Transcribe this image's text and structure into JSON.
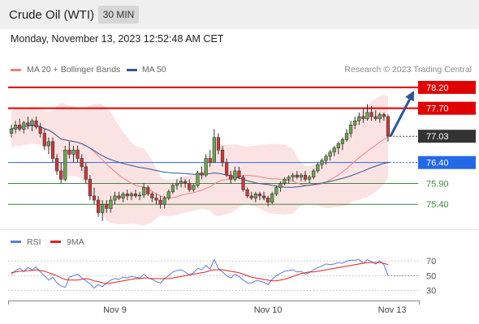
{
  "header": {
    "title": "Crude Oil (WTI)",
    "timeframe": "30 MIN"
  },
  "datetime": "Monday, November 13, 2023 12:52:48 AM CET",
  "legend": {
    "main": [
      {
        "label": "MA 20 + Bollinger Bands",
        "color": "#f08080"
      },
      {
        "label": "MA 50",
        "color": "#2f5597"
      }
    ],
    "rsi": [
      {
        "label": "RSI",
        "color": "#5b7fd6"
      },
      {
        "label": "9MA",
        "color": "#e02020"
      }
    ]
  },
  "copyright": "Research © 2023 Trading Central",
  "chart_data": [
    {
      "type": "candlestick",
      "ylim": [
        74.9,
        78.45
      ],
      "levels": [
        {
          "value": 78.2,
          "label": "78.20",
          "kind": "resistance",
          "color": "#e00000"
        },
        {
          "value": 77.7,
          "label": "77.70",
          "kind": "resistance",
          "color": "#e00000"
        },
        {
          "value": 77.03,
          "label": "77.03",
          "kind": "last",
          "color": "#222222"
        },
        {
          "value": 76.4,
          "label": "76.40",
          "kind": "pivot",
          "color": "#2468e8"
        },
        {
          "value": 75.9,
          "label": "75.90",
          "kind": "support",
          "color": "#3a8a3a"
        },
        {
          "value": 75.4,
          "label": "75.40",
          "kind": "support",
          "color": "#3a8a3a"
        }
      ],
      "x_ticks": [
        {
          "label": "Nov 9",
          "index": 25
        },
        {
          "label": "Nov 10",
          "index": 62
        },
        {
          "label": "Nov 13",
          "index": 92
        }
      ],
      "candles": [
        [
          77.1,
          77.3,
          77.0,
          77.2
        ],
        [
          77.2,
          77.4,
          77.1,
          77.3
        ],
        [
          77.3,
          77.45,
          77.15,
          77.2
        ],
        [
          77.2,
          77.4,
          77.1,
          77.35
        ],
        [
          77.35,
          77.5,
          77.2,
          77.3
        ],
        [
          77.3,
          77.45,
          77.15,
          77.4
        ],
        [
          77.4,
          77.5,
          77.2,
          77.25
        ],
        [
          77.25,
          77.35,
          77.0,
          77.1
        ],
        [
          77.1,
          77.2,
          76.7,
          76.8
        ],
        [
          76.8,
          77.0,
          76.6,
          76.9
        ],
        [
          76.9,
          77.0,
          76.4,
          76.5
        ],
        [
          76.5,
          76.6,
          76.1,
          76.2
        ],
        [
          76.2,
          76.4,
          75.9,
          76.0
        ],
        [
          76.0,
          76.8,
          75.95,
          76.7
        ],
        [
          76.7,
          76.9,
          76.5,
          76.6
        ],
        [
          76.6,
          76.8,
          76.4,
          76.7
        ],
        [
          76.7,
          76.8,
          76.4,
          76.5
        ],
        [
          76.5,
          76.6,
          76.2,
          76.3
        ],
        [
          76.3,
          76.4,
          75.9,
          76.0
        ],
        [
          76.0,
          76.1,
          75.5,
          75.6
        ],
        [
          75.6,
          75.8,
          75.4,
          75.5
        ],
        [
          75.5,
          75.6,
          75.1,
          75.2
        ],
        [
          75.2,
          75.5,
          75.0,
          75.4
        ],
        [
          75.4,
          75.5,
          75.2,
          75.3
        ],
        [
          75.3,
          75.6,
          75.2,
          75.5
        ],
        [
          75.5,
          75.7,
          75.4,
          75.6
        ],
        [
          75.6,
          75.7,
          75.5,
          75.55
        ],
        [
          75.55,
          75.7,
          75.45,
          75.65
        ],
        [
          75.65,
          75.75,
          75.5,
          75.6
        ],
        [
          75.6,
          75.7,
          75.5,
          75.65
        ],
        [
          75.65,
          75.75,
          75.55,
          75.6
        ],
        [
          75.6,
          75.7,
          75.5,
          75.62
        ],
        [
          75.62,
          75.9,
          75.55,
          75.8
        ],
        [
          75.8,
          75.85,
          75.6,
          75.65
        ],
        [
          75.65,
          75.7,
          75.45,
          75.55
        ],
        [
          75.55,
          75.65,
          75.4,
          75.5
        ],
        [
          75.5,
          75.6,
          75.3,
          75.4
        ],
        [
          75.4,
          75.6,
          75.3,
          75.55
        ],
        [
          75.55,
          75.75,
          75.5,
          75.7
        ],
        [
          75.7,
          75.9,
          75.65,
          75.85
        ],
        [
          75.85,
          76.0,
          75.75,
          75.9
        ],
        [
          75.9,
          76.05,
          75.8,
          75.95
        ],
        [
          75.95,
          76.0,
          75.8,
          75.9
        ],
        [
          75.9,
          76.0,
          75.7,
          75.75
        ],
        [
          75.75,
          75.9,
          75.7,
          75.85
        ],
        [
          75.85,
          76.2,
          75.8,
          76.15
        ],
        [
          76.15,
          76.3,
          76.0,
          76.1
        ],
        [
          76.1,
          76.6,
          76.05,
          76.5
        ],
        [
          76.5,
          76.7,
          76.3,
          76.4
        ],
        [
          76.4,
          77.2,
          76.4,
          77.0
        ],
        [
          77.0,
          77.1,
          76.6,
          76.7
        ],
        [
          76.7,
          76.8,
          76.3,
          76.4
        ],
        [
          76.4,
          76.5,
          76.05,
          76.1
        ],
        [
          76.1,
          76.2,
          75.9,
          76.0
        ],
        [
          76.0,
          76.3,
          75.95,
          76.2
        ],
        [
          76.2,
          76.3,
          76.0,
          76.05
        ],
        [
          76.05,
          76.1,
          75.7,
          75.75
        ],
        [
          75.75,
          75.8,
          75.55,
          75.6
        ],
        [
          75.6,
          75.7,
          75.5,
          75.55
        ],
        [
          75.55,
          75.7,
          75.45,
          75.65
        ],
        [
          75.65,
          75.7,
          75.5,
          75.6
        ],
        [
          75.6,
          75.7,
          75.5,
          75.55
        ],
        [
          75.55,
          75.6,
          75.35,
          75.45
        ],
        [
          75.45,
          75.7,
          75.4,
          75.65
        ],
        [
          75.65,
          75.85,
          75.6,
          75.8
        ],
        [
          75.8,
          75.95,
          75.7,
          75.9
        ],
        [
          75.9,
          76.05,
          75.85,
          76.0
        ],
        [
          76.0,
          76.1,
          75.9,
          76.05
        ],
        [
          76.05,
          76.15,
          75.95,
          76.1
        ],
        [
          76.1,
          76.2,
          76.0,
          76.05
        ],
        [
          76.05,
          76.15,
          75.95,
          76.1
        ],
        [
          76.1,
          76.2,
          75.95,
          76.0
        ],
        [
          76.0,
          76.1,
          75.9,
          76.05
        ],
        [
          76.05,
          76.25,
          76.0,
          76.2
        ],
        [
          76.2,
          76.4,
          76.15,
          76.35
        ],
        [
          76.35,
          76.5,
          76.25,
          76.45
        ],
        [
          76.45,
          76.6,
          76.35,
          76.55
        ],
        [
          76.55,
          76.7,
          76.45,
          76.65
        ],
        [
          76.65,
          76.8,
          76.55,
          76.75
        ],
        [
          76.75,
          76.9,
          76.6,
          76.85
        ],
        [
          76.85,
          77.0,
          76.7,
          76.95
        ],
        [
          76.95,
          77.2,
          76.9,
          77.1
        ],
        [
          77.1,
          77.4,
          77.0,
          77.3
        ],
        [
          77.3,
          77.5,
          77.2,
          77.4
        ],
        [
          77.4,
          77.6,
          77.3,
          77.5
        ],
        [
          77.5,
          77.7,
          77.35,
          77.45
        ],
        [
          77.45,
          77.8,
          77.4,
          77.6
        ],
        [
          77.6,
          77.75,
          77.4,
          77.5
        ],
        [
          77.5,
          77.65,
          77.4,
          77.45
        ],
        [
          77.45,
          77.6,
          77.35,
          77.55
        ],
        [
          77.55,
          77.6,
          77.4,
          77.5
        ],
        [
          77.5,
          77.55,
          76.9,
          77.03
        ]
      ]
    },
    {
      "type": "line",
      "name": "RSI",
      "ylim": [
        25,
        78
      ],
      "y_ticks": [
        70,
        50,
        30
      ],
      "series": [
        {
          "name": "RSI",
          "color": "#5b7fd6",
          "values": [
            52,
            57,
            60,
            56,
            61,
            58,
            62,
            55,
            50,
            44,
            48,
            40,
            36,
            34,
            48,
            50,
            52,
            47,
            43,
            39,
            33,
            38,
            35,
            40,
            44,
            46,
            45,
            48,
            47,
            49,
            48,
            47,
            52,
            47,
            45,
            42,
            40,
            46,
            50,
            55,
            57,
            58,
            55,
            51,
            54,
            60,
            58,
            64,
            59,
            72,
            60,
            55,
            50,
            47,
            52,
            49,
            44,
            40,
            40,
            43,
            43,
            41,
            38,
            45,
            50,
            53,
            56,
            57,
            58,
            55,
            56,
            52,
            54,
            58,
            61,
            63,
            66,
            65,
            66,
            68,
            67,
            70,
            71,
            71,
            72,
            67,
            72,
            69,
            66,
            70,
            65,
            50
          ]
        },
        {
          "name": "9MA",
          "color": "#e02020",
          "values": [
            54,
            55,
            56,
            56,
            57,
            57,
            58,
            57,
            56,
            54,
            52,
            50,
            47,
            45,
            44,
            44,
            44,
            45,
            46,
            45,
            43,
            42,
            40,
            39,
            40,
            41,
            42,
            43,
            44,
            45,
            46,
            46,
            47,
            47,
            46,
            46,
            46,
            46,
            46,
            47,
            48,
            49,
            50,
            51,
            52,
            53,
            54,
            55,
            57,
            58,
            58,
            58,
            57,
            56,
            55,
            54,
            52,
            50,
            48,
            47,
            46,
            45,
            44,
            43,
            43,
            44,
            45,
            47,
            49,
            51,
            53,
            54,
            55,
            55,
            56,
            57,
            58,
            59,
            60,
            61,
            62,
            63,
            64,
            65,
            66,
            67,
            68,
            68,
            68,
            68,
            67,
            65
          ]
        }
      ]
    }
  ]
}
